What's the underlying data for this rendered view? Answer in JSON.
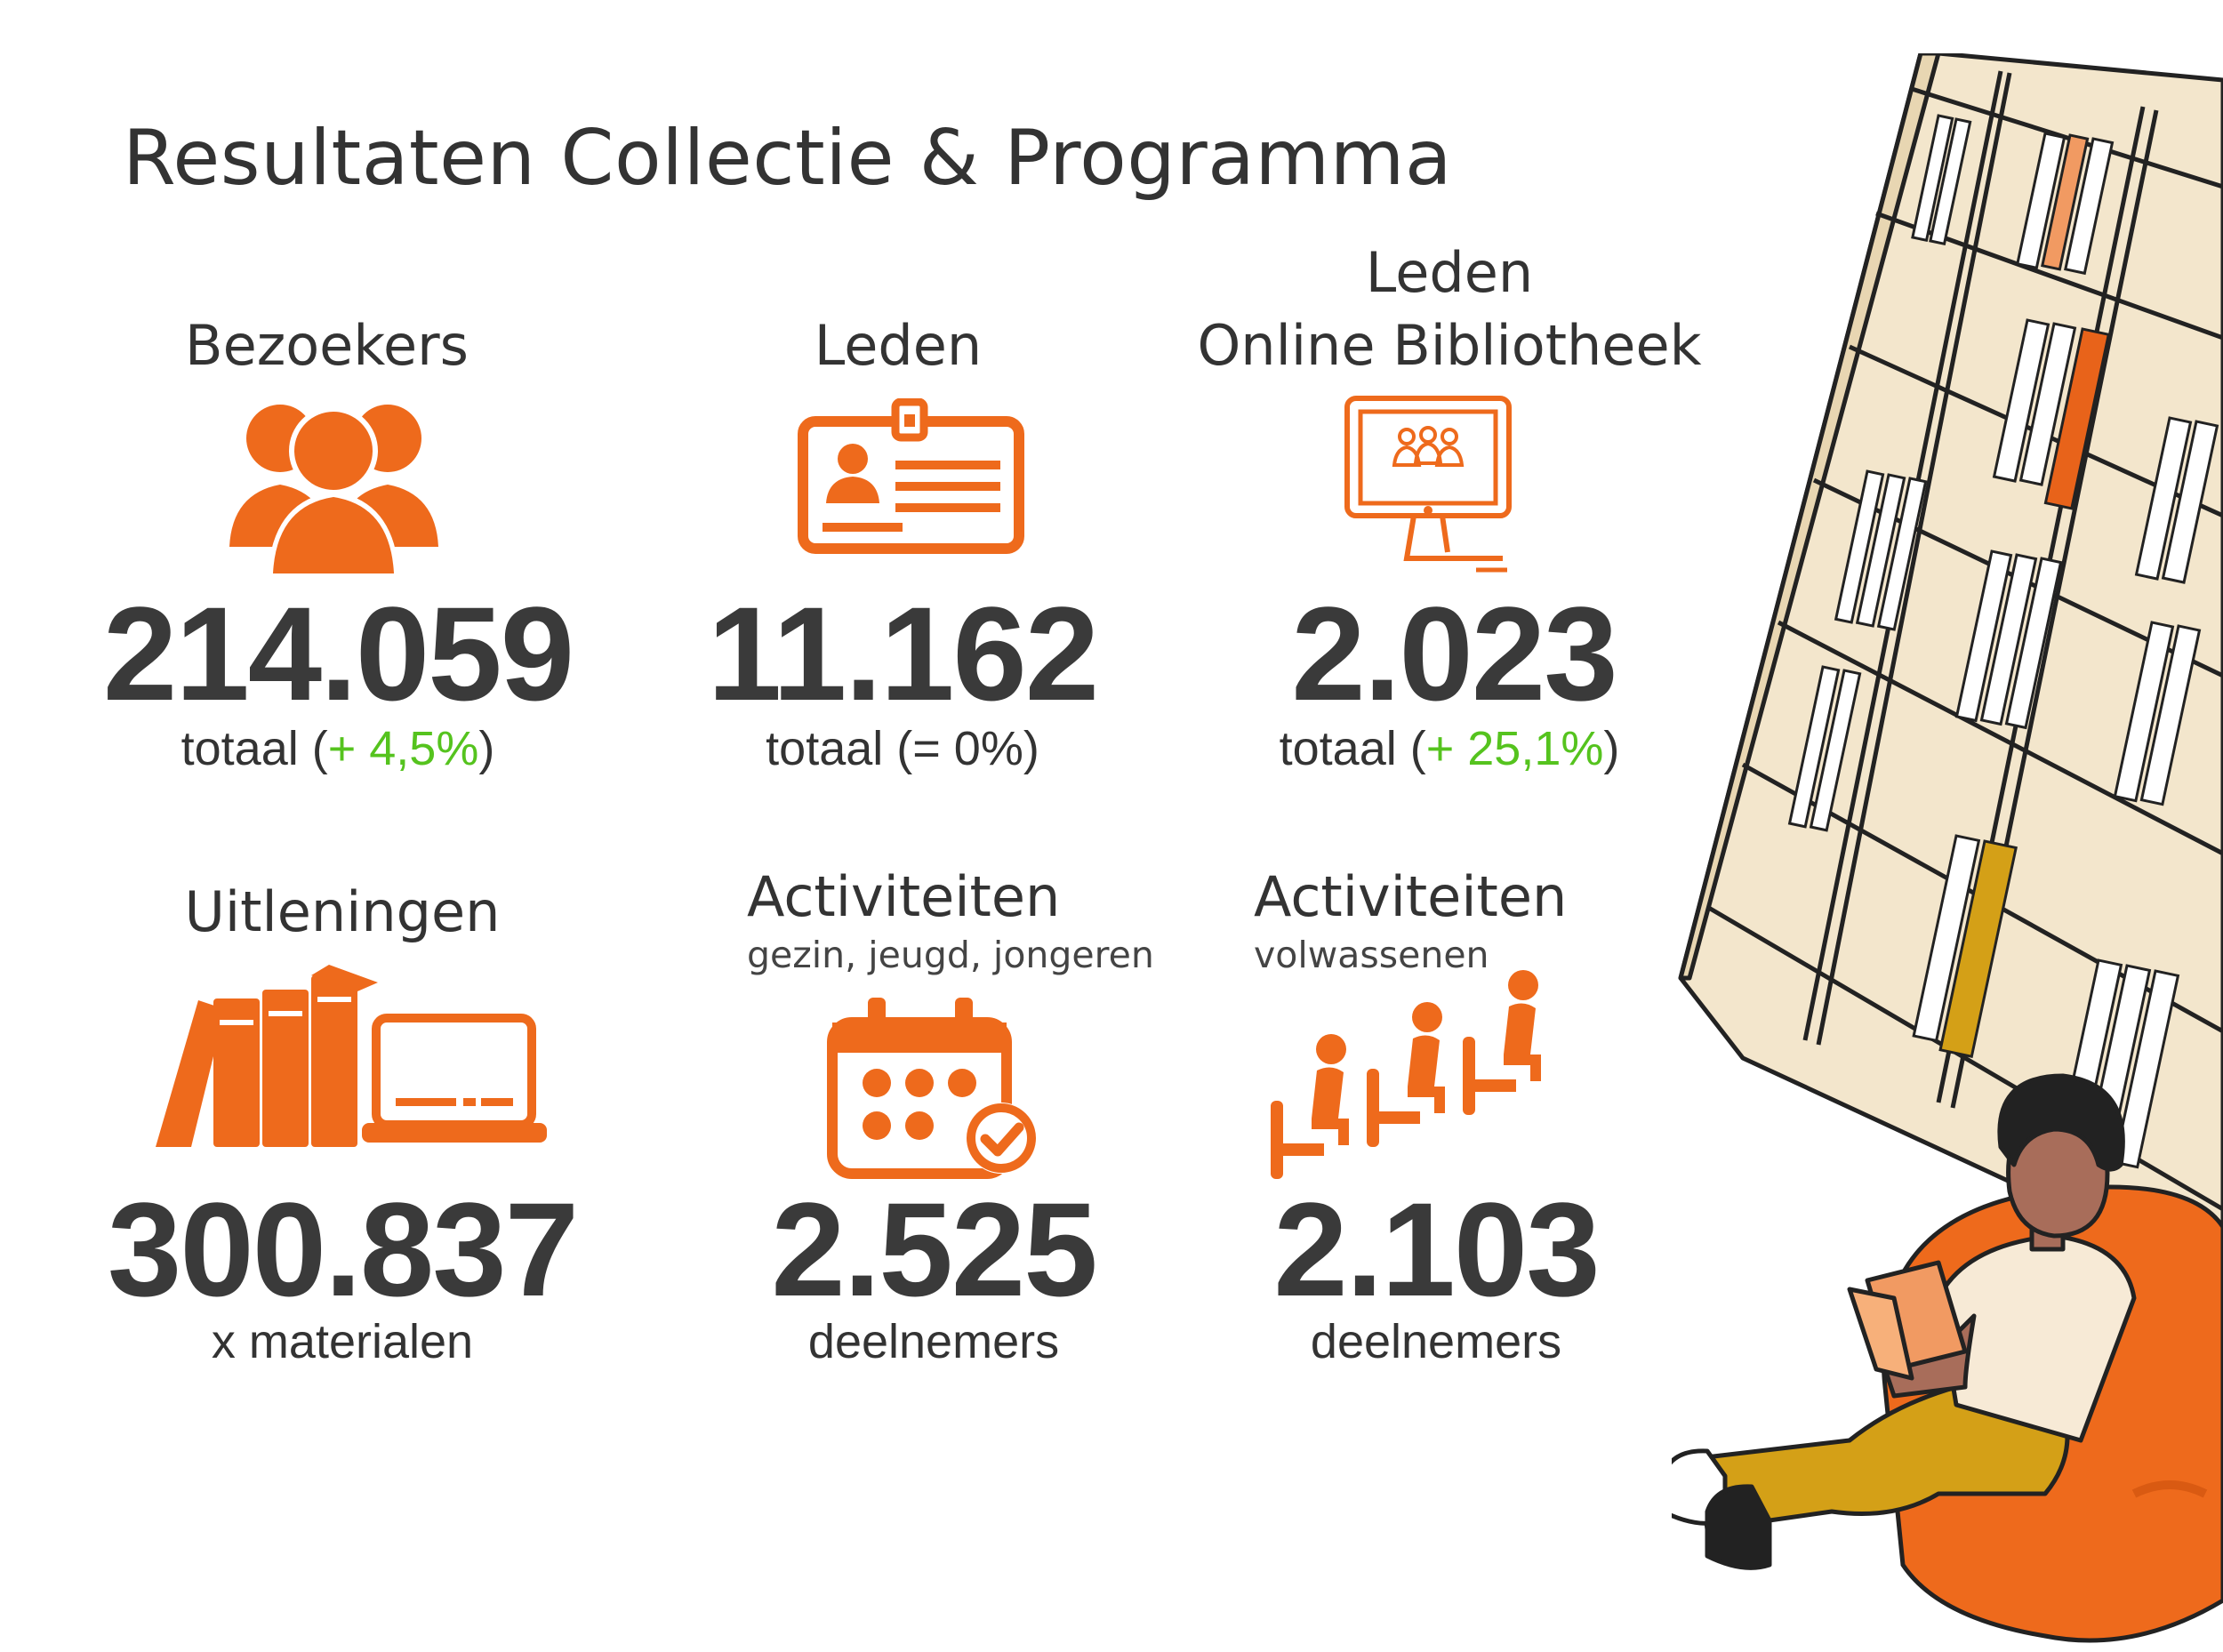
{
  "title": "Resultaten Collectie & Programma",
  "stats": [
    {
      "label": "Bezoekers",
      "value": "214.059",
      "caption_prefix": "totaal (",
      "change": "+ 4,5%",
      "caption_suffix": ")"
    },
    {
      "label": "Leden",
      "value": "11.162",
      "caption_prefix": "totaal (",
      "change": "= 0%",
      "caption_suffix": ")"
    },
    {
      "label_line1": "Leden",
      "label_line2": "Online Bibliotheek",
      "value": "2.023",
      "caption_prefix": "totaal (",
      "change": "+ 25,1%",
      "caption_suffix": ")"
    },
    {
      "label": "Uitleningen",
      "value": "300.837",
      "caption": "x materialen"
    },
    {
      "label": "Activiteiten",
      "sublabel": "gezin, jeugd, jongeren",
      "value": "2.525",
      "caption": "deelnemers"
    },
    {
      "label": "Activiteiten",
      "sublabel": "volwassenen",
      "value": "2.103",
      "caption": "deelnemers"
    }
  ],
  "colors": {
    "accent": "#ee6a1c",
    "positive_change": "#55c31e",
    "text": "#3a3a3a"
  },
  "icons": [
    "visitors-icon",
    "member-card-icon",
    "online-library-monitor-icon",
    "books-and-laptop-icon",
    "calendar-check-icon",
    "seated-audience-icon",
    "reader-bookshelf-illustration"
  ]
}
